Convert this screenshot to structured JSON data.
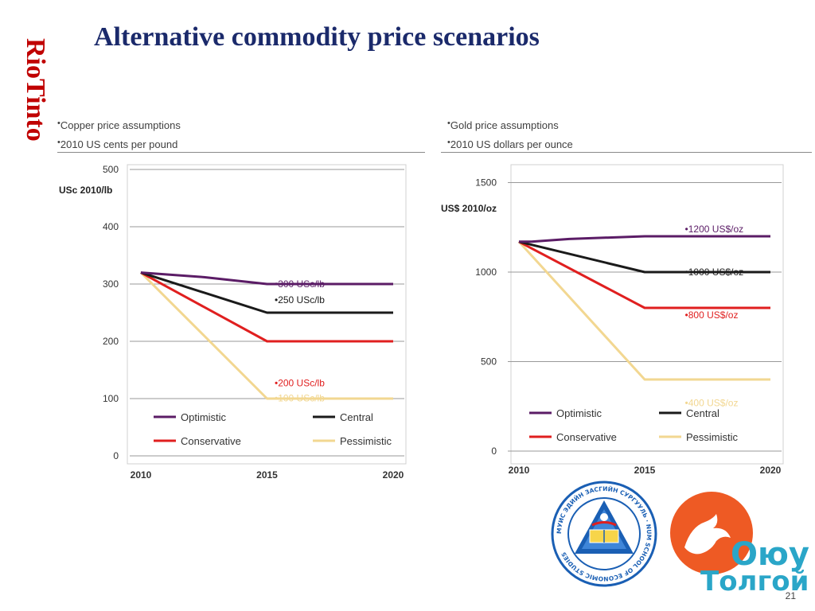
{
  "slide": {
    "title": "Alternative commodity price scenarios",
    "brand": "RioTinto",
    "page_number": "21"
  },
  "copper": {
    "bullets": [
      "Copper price assumptions",
      "2010 US cents per pound"
    ]
  },
  "gold": {
    "bullets": [
      "Gold price assumptions",
      "2010 US dollars per ounce"
    ]
  },
  "logos": {
    "nes_seal_text": "МУИС ЭДИЙН ЗАСГИЙН СУРГУУЛЬ · NUM SCHOOL OF ECONOMIC STUDIES",
    "oyu_tolgoi_line1": "Оюу",
    "oyu_tolgoi_line2": "Толгой"
  },
  "colors": {
    "brand_red": "#c00000",
    "title_blue": "#1b2a6b",
    "optimistic": "#5b1c66",
    "central": "#1a1a1a",
    "conservative": "#e01f1f",
    "pessimistic": "#f2d791",
    "grid": "#999999",
    "oyu_orange": "#ee5a24",
    "oyu_blue": "#2aa6c8"
  },
  "chart_data": [
    {
      "type": "line",
      "ylabel": "USc 2010/lb",
      "xlim": [
        2010,
        2020
      ],
      "ylim": [
        0,
        500
      ],
      "x_ticks": [
        2010,
        2015,
        2020
      ],
      "y_ticks": [
        0,
        100,
        200,
        300,
        400,
        500
      ],
      "grid": "horizontal",
      "legend_position": "bottom",
      "series": [
        {
          "name": "Optimistic",
          "color": "#5b1c66",
          "x": [
            2010,
            2012.5,
            2015,
            2020
          ],
          "y": [
            320,
            312,
            300,
            300
          ]
        },
        {
          "name": "Central",
          "color": "#1a1a1a",
          "x": [
            2010,
            2015,
            2020
          ],
          "y": [
            320,
            250,
            250
          ]
        },
        {
          "name": "Conservative",
          "color": "#e01f1f",
          "x": [
            2010,
            2015,
            2020
          ],
          "y": [
            320,
            200,
            200
          ]
        },
        {
          "name": "Pessimistic",
          "color": "#f2d791",
          "x": [
            2010,
            2015,
            2020
          ],
          "y": [
            320,
            100,
            100
          ]
        }
      ],
      "annotations": [
        {
          "text": "300 USc/lb",
          "x": 2015.3,
          "y": 300,
          "color": "#5b1c66"
        },
        {
          "text": "250 USc/lb",
          "x": 2015.3,
          "y": 272,
          "color": "#1a1a1a"
        },
        {
          "text": "200 USc/lb",
          "x": 2015.3,
          "y": 127,
          "color": "#e01f1f"
        },
        {
          "text": "100 USc/lb",
          "x": 2015.3,
          "y": 101,
          "color": "#f2d791"
        }
      ]
    },
    {
      "type": "line",
      "ylabel": "US$ 2010/oz",
      "xlim": [
        2010,
        2020
      ],
      "ylim": [
        0,
        1600
      ],
      "x_ticks": [
        2010,
        2015,
        2020
      ],
      "y_ticks": [
        0,
        500,
        1000,
        1500
      ],
      "grid": "horizontal",
      "legend_position": "bottom",
      "series": [
        {
          "name": "Optimistic",
          "color": "#5b1c66",
          "x": [
            2010,
            2010.5,
            2012,
            2015,
            2020
          ],
          "y": [
            1170,
            1170,
            1185,
            1200,
            1200
          ]
        },
        {
          "name": "Central",
          "color": "#1a1a1a",
          "x": [
            2010,
            2015,
            2020
          ],
          "y": [
            1170,
            1000,
            1000
          ]
        },
        {
          "name": "Conservative",
          "color": "#e01f1f",
          "x": [
            2010,
            2015,
            2020
          ],
          "y": [
            1170,
            800,
            800
          ]
        },
        {
          "name": "Pessimistic",
          "color": "#f2d791",
          "x": [
            2010,
            2015,
            2020
          ],
          "y": [
            1170,
            400,
            400
          ]
        }
      ],
      "annotations": [
        {
          "text": "1200 US$/oz",
          "x": 2016.6,
          "y": 1240,
          "color": "#5b1c66"
        },
        {
          "text": "1000 US$/oz",
          "x": 2016.6,
          "y": 1000,
          "color": "#1a1a1a"
        },
        {
          "text": "800 US$/oz",
          "x": 2016.6,
          "y": 760,
          "color": "#e01f1f"
        },
        {
          "text": "400 US$/oz",
          "x": 2016.6,
          "y": 270,
          "color": "#f2d791"
        }
      ]
    }
  ]
}
